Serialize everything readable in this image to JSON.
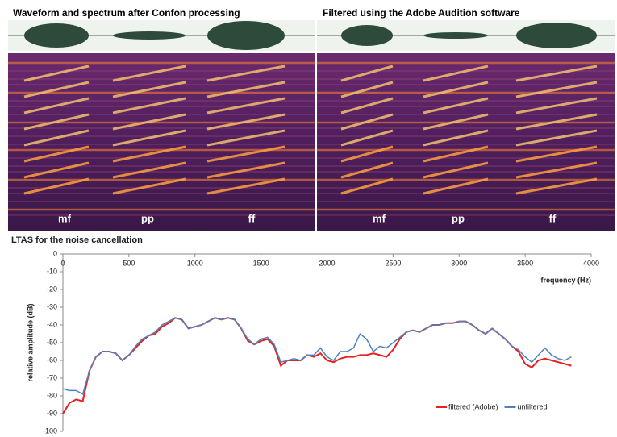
{
  "spectrograms": [
    {
      "title": "Waveform and spectrum after Confon processing",
      "labels": [
        "mf",
        "pp",
        "ff"
      ]
    },
    {
      "title": "Filtered using the Adobe Audition software",
      "labels": [
        "mf",
        "pp",
        "ff"
      ]
    }
  ],
  "chart_data": {
    "type": "line",
    "title": "LTAS for the noise cancellation",
    "x_label": "frequency (Hz)",
    "y_label": "relative amplitude (dB)",
    "xlim": [
      0,
      4000
    ],
    "xticks": [
      0,
      500,
      1000,
      1500,
      2000,
      2500,
      3000,
      3500,
      4000
    ],
    "ylim": [
      -100,
      0
    ],
    "yticks": [
      0,
      -10,
      -20,
      -30,
      -40,
      -50,
      -60,
      -70,
      -80,
      -90,
      -100
    ],
    "grid": false,
    "legend": "lower right",
    "x": [
      0,
      50,
      100,
      150,
      200,
      250,
      300,
      350,
      400,
      450,
      500,
      550,
      600,
      650,
      700,
      750,
      800,
      850,
      900,
      950,
      1000,
      1050,
      1100,
      1150,
      1200,
      1250,
      1300,
      1350,
      1400,
      1450,
      1500,
      1550,
      1600,
      1650,
      1700,
      1750,
      1800,
      1850,
      1900,
      1950,
      2000,
      2050,
      2100,
      2150,
      2200,
      2250,
      2300,
      2350,
      2400,
      2450,
      2500,
      2550,
      2600,
      2650,
      2700,
      2750,
      2800,
      2850,
      2900,
      2950,
      3000,
      3050,
      3100,
      3150,
      3200,
      3250,
      3300,
      3350,
      3400,
      3450,
      3500,
      3550,
      3600,
      3650,
      3700,
      3750,
      3800,
      3850
    ],
    "series": [
      {
        "name": "filtered (Adobe)",
        "color": "#e8211f",
        "values": [
          -90,
          -84,
          -82,
          -83,
          -66,
          -58,
          -55,
          -55,
          -56,
          -60,
          -57,
          -53,
          -49,
          -46,
          -45,
          -41,
          -39,
          -36,
          -37,
          -42,
          -41,
          -40,
          -38,
          -36,
          -37,
          -36,
          -37,
          -42,
          -49,
          -51,
          -49,
          -48,
          -52,
          -63,
          -60,
          -60,
          -60,
          -57,
          -58,
          -56,
          -60,
          -61,
          -59,
          -58,
          -58,
          -57,
          -57,
          -56,
          -57,
          -58,
          -54,
          -48,
          -44,
          -43,
          -44,
          -42,
          -40,
          -40,
          -39,
          -39,
          -38,
          -38,
          -40,
          -43,
          -45,
          -42,
          -45,
          -48,
          -52,
          -55,
          -62,
          -64,
          -60,
          -59,
          -60,
          -61,
          -62,
          -63
        ]
      },
      {
        "name": "unfiltered",
        "color": "#4f81bd",
        "values": [
          -76,
          -77,
          -77,
          -79,
          -66,
          -58,
          -55,
          -55,
          -56,
          -60,
          -57,
          -52,
          -48,
          -46,
          -44,
          -40,
          -38,
          -36,
          -37,
          -42,
          -41,
          -40,
          -38,
          -36,
          -37,
          -36,
          -37,
          -42,
          -48,
          -51,
          -48,
          -47,
          -51,
          -61,
          -60,
          -59,
          -60,
          -57,
          -57,
          -53,
          -58,
          -60,
          -55,
          -55,
          -53,
          -45,
          -48,
          -55,
          -52,
          -53,
          -50,
          -47,
          -44,
          -43,
          -44,
          -42,
          -40,
          -40,
          -39,
          -39,
          -38,
          -38,
          -40,
          -43,
          -45,
          -42,
          -45,
          -48,
          -52,
          -54,
          -58,
          -61,
          -57,
          -53,
          -57,
          -59,
          -60,
          -58
        ]
      }
    ]
  }
}
